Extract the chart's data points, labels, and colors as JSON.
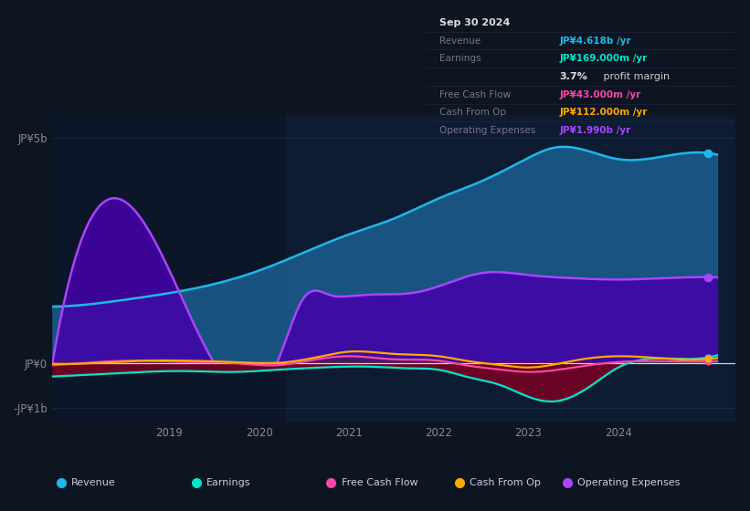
{
  "bg_color": "#0d1520",
  "plot_bg_color": "#0d1b2e",
  "title": "Sep 30 2024",
  "y_label_top": "JP¥5b",
  "y_label_zero": "JP¥0",
  "y_label_neg": "-JP¥1b",
  "ylim": [
    -1300000000.0,
    5500000000.0
  ],
  "xlim_start": 2017.7,
  "xlim_end": 2025.3,
  "xticks": [
    2019,
    2020,
    2021,
    2022,
    2023,
    2024
  ],
  "grid_color": "#2a3a5a",
  "grid_alpha": 0.5,
  "rev_color": "#1eb8e8",
  "rev_fill": "#1a5a8a",
  "opex_color": "#aa44ff",
  "opex_fill": "#4400aa",
  "earn_color": "#00e5cc",
  "fcf_color": "#ff44aa",
  "cfop_color": "#ffaa00",
  "earn_neg_fill": "#7a0022",
  "legend_items": [
    {
      "label": "Revenue",
      "color": "#1eb8e8"
    },
    {
      "label": "Earnings",
      "color": "#00e5cc"
    },
    {
      "label": "Free Cash Flow",
      "color": "#ff44aa"
    },
    {
      "label": "Cash From Op",
      "color": "#ffaa00"
    },
    {
      "label": "Operating Expenses",
      "color": "#aa44ff"
    }
  ]
}
